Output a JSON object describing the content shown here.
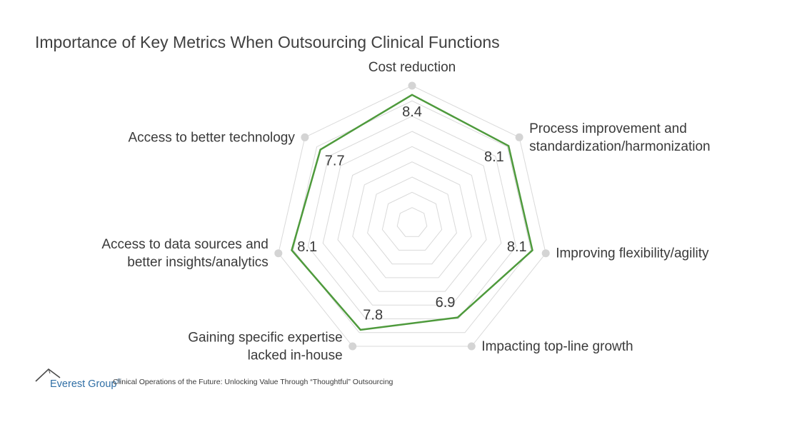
{
  "chart_data": {
    "type": "radar",
    "title": "Importance of Key Metrics When Outsourcing Clinical Functions",
    "categories": [
      "Cost reduction",
      "Process improvement and standardization/harmonization",
      "Improving flexibility/agility",
      "Impacting top-line growth",
      "Gaining specific expertise lacked in-house",
      "Access to data sources and better insights/analytics",
      "Access to better technology"
    ],
    "category_lines": [
      [
        "Cost reduction"
      ],
      [
        "Process improvement and",
        "standardization/harmonization"
      ],
      [
        "Improving flexibility/agility"
      ],
      [
        "Impacting top-line growth"
      ],
      [
        "Gaining specific expertise",
        "lacked in-house"
      ],
      [
        "Access to data sources and",
        "better insights/analytics"
      ],
      [
        "Access to better technology"
      ]
    ],
    "values": [
      8.4,
      8.1,
      8.1,
      6.9,
      7.8,
      8.1,
      7.7
    ],
    "value_labels": [
      "8.4",
      "8.1",
      "8.1",
      "6.9",
      "7.8",
      "8.1",
      "7.7"
    ],
    "range": [
      0,
      9
    ],
    "grid_rings": 9,
    "series_color": "#4e9a3c",
    "grid_color": "#d9d9d9",
    "marker_color": "#d4d4d4"
  },
  "footer": {
    "brand": "Everest Group",
    "brand_mark": "®",
    "source": "Clinical Operations of the Future: Unlocking Value Through “Thoughtful” Outsourcing"
  }
}
